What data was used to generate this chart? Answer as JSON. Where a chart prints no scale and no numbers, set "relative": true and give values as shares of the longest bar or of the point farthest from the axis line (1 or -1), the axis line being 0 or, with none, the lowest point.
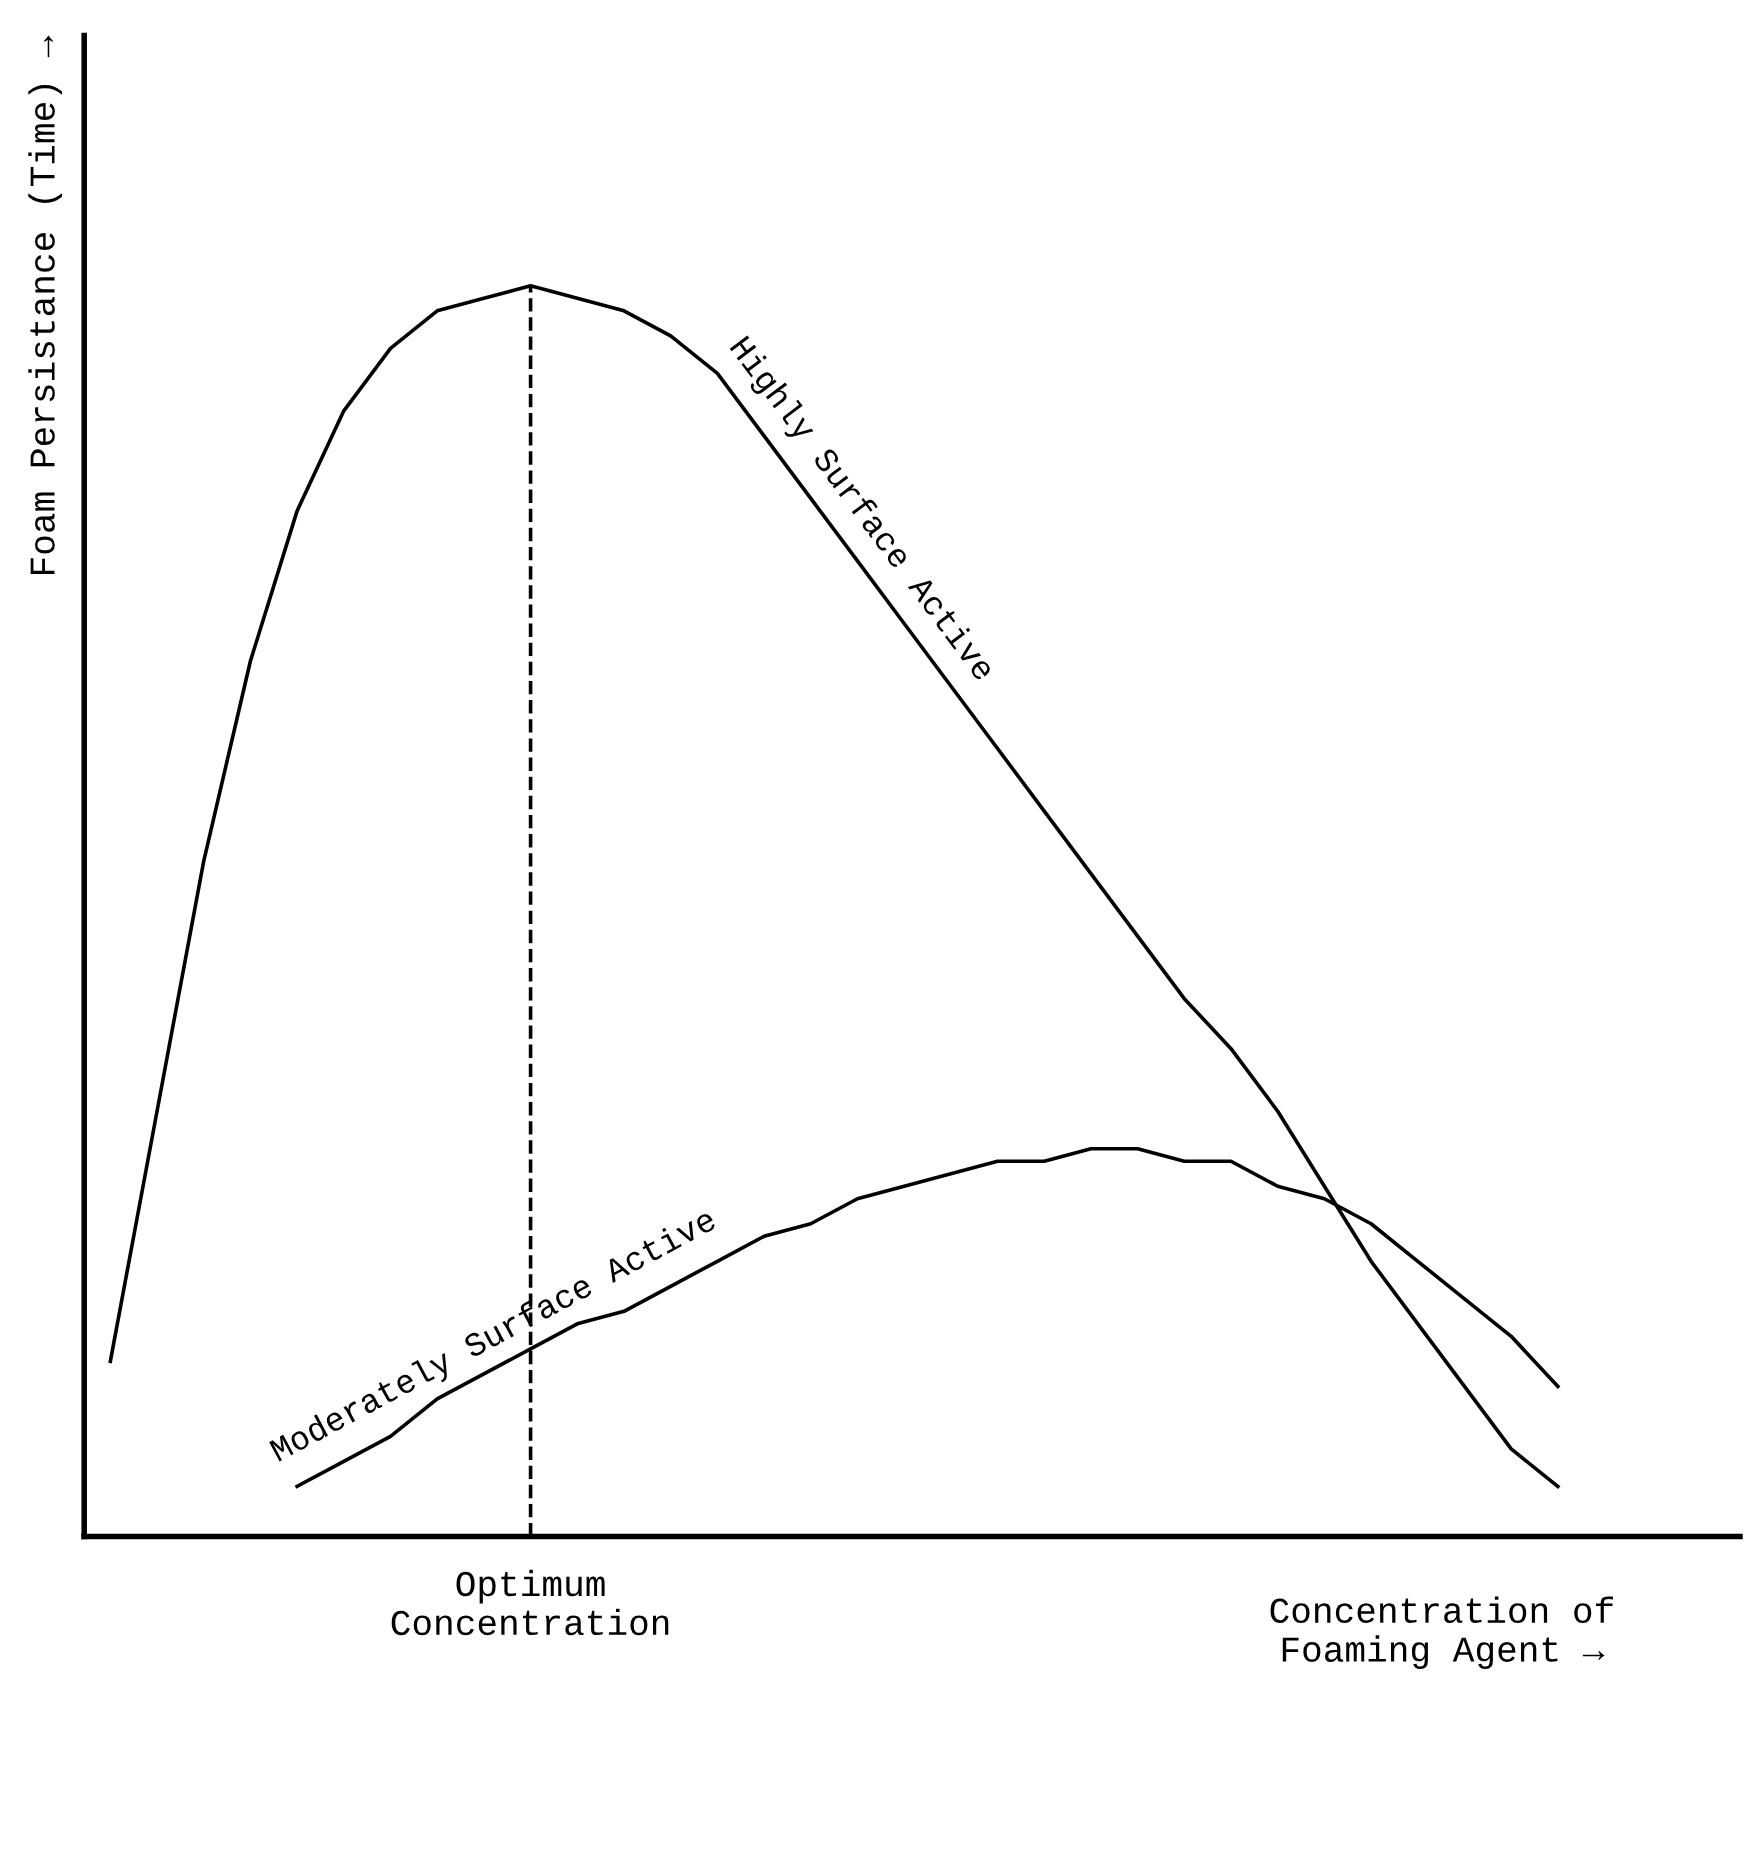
{
  "chart_data": {
    "type": "line",
    "relative": true,
    "xlabel": "Concentration of\nFoaming Agent →",
    "ylabel": "Foam Persistance (Time) →",
    "categories": [
      null,
      null,
      null,
      null,
      null,
      null,
      null,
      null,
      null,
      null,
      null,
      null,
      null,
      null,
      null,
      null,
      null,
      null,
      null,
      null,
      null,
      null,
      null,
      null,
      null,
      null,
      null,
      null,
      null,
      null,
      null,
      null
    ],
    "series": [
      {
        "name": "Highly Surface Active",
        "color": "#000000",
        "values": [
          0.14,
          0.34,
          0.54,
          0.7,
          0.82,
          0.9,
          0.95,
          0.98,
          0.99,
          1.0,
          0.99,
          0.98,
          0.96,
          0.93,
          0.88,
          0.83,
          0.78,
          0.73,
          0.68,
          0.63,
          0.58,
          0.53,
          0.48,
          0.43,
          0.39,
          0.34,
          0.28,
          0.22,
          0.17,
          0.12,
          0.07,
          0.04
        ]
      },
      {
        "name": "Moderately Surface Active",
        "color": "#000000",
        "values": [
          null,
          null,
          null,
          null,
          0.04,
          0.06,
          0.08,
          0.11,
          0.13,
          0.15,
          0.17,
          0.18,
          0.2,
          0.22,
          0.24,
          0.25,
          0.27,
          0.28,
          0.29,
          0.3,
          0.3,
          0.31,
          0.31,
          0.3,
          0.3,
          0.28,
          0.27,
          0.25,
          0.22,
          0.19,
          0.16,
          0.12
        ]
      }
    ],
    "ref_lines": [
      {
        "axis": "x",
        "label": "Optimum\nConcentration",
        "line_style": "dashed",
        "color": "#000000"
      }
    ],
    "grid": false,
    "legend": false,
    "marker": "none",
    "line_style": "solid"
  }
}
